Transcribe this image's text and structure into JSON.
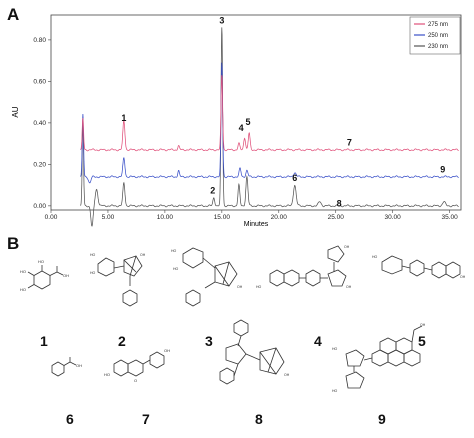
{
  "panels": {
    "a": "A",
    "b": "B"
  },
  "chart_data": {
    "type": "line",
    "xlabel": "Minutes",
    "ylabel": "AU",
    "xlim": [
      0,
      36
    ],
    "ylim": [
      -0.02,
      0.92
    ],
    "x_ticks": [
      0.0,
      5.0,
      10.0,
      15.0,
      20.0,
      25.0,
      30.0,
      35.0
    ],
    "x_tick_labels": [
      "0.00",
      "5.00",
      "10.00",
      "15.00",
      "20.00",
      "25.00",
      "30.00",
      "35.00"
    ],
    "y_ticks": [
      0.0,
      0.2,
      0.4,
      0.6,
      0.8
    ],
    "y_tick_labels": [
      "0.00",
      "0.20",
      "0.40",
      "0.60",
      "0.80"
    ],
    "legend_position": "top-right",
    "grid": false,
    "series": [
      {
        "name": "230 nm",
        "color": "#555555",
        "baseline": 0.0,
        "peaks": [
          [
            2.8,
            0.4,
            0.06
          ],
          [
            3.6,
            -0.1,
            0.1
          ],
          [
            4.0,
            0.08,
            0.12
          ],
          [
            6.4,
            0.11,
            0.09
          ],
          [
            14.3,
            0.04,
            0.08
          ],
          [
            15.0,
            0.86,
            0.07
          ],
          [
            16.5,
            0.1,
            0.08
          ],
          [
            17.2,
            0.14,
            0.09
          ],
          [
            21.4,
            0.1,
            0.12
          ],
          [
            23.6,
            0.02,
            0.12
          ],
          [
            34.5,
            0.02,
            0.12
          ]
        ]
      },
      {
        "name": "250 nm",
        "color": "#3a50c8",
        "baseline": 0.14,
        "peaks": [
          [
            2.8,
            0.3,
            0.06
          ],
          [
            3.4,
            -0.03,
            0.1
          ],
          [
            6.4,
            0.09,
            0.09
          ],
          [
            11.2,
            0.03,
            0.07
          ],
          [
            15.0,
            0.55,
            0.07
          ],
          [
            16.6,
            0.04,
            0.08
          ],
          [
            17.2,
            0.03,
            0.09
          ],
          [
            21.4,
            0.02,
            0.12
          ]
        ]
      },
      {
        "name": "275 nm",
        "color": "#e0507a",
        "baseline": 0.27,
        "peaks": [
          [
            2.8,
            0.15,
            0.06
          ],
          [
            6.4,
            0.14,
            0.09
          ],
          [
            11.2,
            0.02,
            0.07
          ],
          [
            15.0,
            0.36,
            0.07
          ],
          [
            16.5,
            0.03,
            0.08
          ],
          [
            17.0,
            0.06,
            0.08
          ],
          [
            17.4,
            0.08,
            0.08
          ]
        ]
      }
    ],
    "annotations": [
      {
        "text": "1",
        "x": 6.4,
        "y": 0.41
      },
      {
        "text": "3",
        "x": 15.0,
        "y": 0.88
      },
      {
        "text": "4",
        "x": 16.7,
        "y": 0.36
      },
      {
        "text": "5",
        "x": 17.3,
        "y": 0.39
      },
      {
        "text": "7",
        "x": 26.2,
        "y": 0.29
      },
      {
        "text": "2",
        "x": 14.2,
        "y": 0.06
      },
      {
        "text": "6",
        "x": 21.4,
        "y": 0.12
      },
      {
        "text": "8",
        "x": 25.3,
        "y": -0.002
      },
      {
        "text": "9",
        "x": 34.4,
        "y": 0.16
      }
    ]
  },
  "compounds": [
    {
      "label": "1",
      "icon": "gallic-acid-structure-icon"
    },
    {
      "label": "2",
      "icon": "benzoylpaeoniflorin-fragment-structure-icon"
    },
    {
      "label": "3",
      "icon": "benzoylpaeoniflorin-structure-icon"
    },
    {
      "label": "4",
      "icon": "liquiritin-apioside-structure-icon"
    },
    {
      "label": "5",
      "icon": "liquiritin-structure-icon"
    },
    {
      "label": "6",
      "icon": "benzoic-acid-structure-icon"
    },
    {
      "label": "7",
      "icon": "liquiritigenin-structure-icon"
    },
    {
      "label": "8",
      "icon": "benzoyl-oxypaeoniflorin-structure-icon"
    },
    {
      "label": "9",
      "icon": "glycyrrhizin-structure-icon"
    }
  ]
}
